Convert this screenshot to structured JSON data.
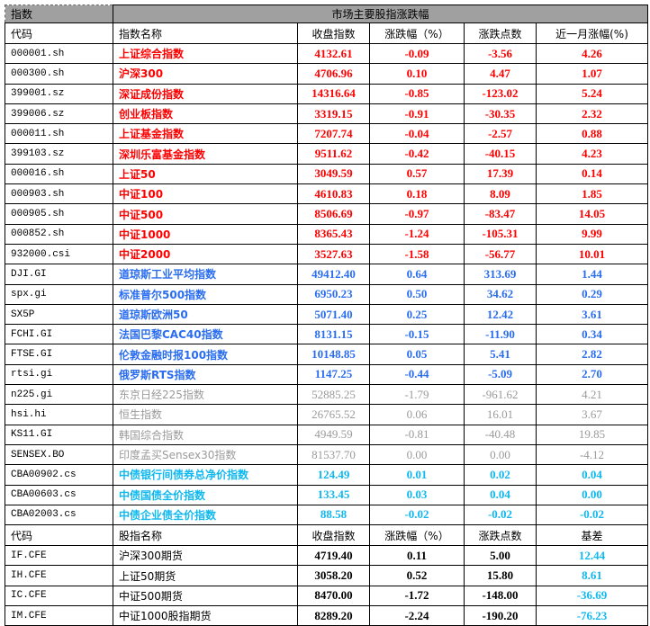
{
  "title_left": "指数",
  "title": "市场主要股指涨跌幅",
  "columns": [
    "代码",
    "指数名称",
    "收盘指数",
    "涨跌幅（%）",
    "涨跌点数",
    "近一月涨幅(%)"
  ],
  "colors": {
    "red": "#ff0000",
    "blue": "#2a6df0",
    "gray": "#9a9a9a",
    "cyan": "#10b8f0",
    "header_bg": "#a0a0a0"
  },
  "indices": [
    {
      "code": "000001.sh",
      "name": "上证综合指数",
      "close": "4132.61",
      "pct": "-0.09",
      "pts": "-3.56",
      "month": "4.26",
      "color": "red"
    },
    {
      "code": "000300.sh",
      "name": "沪深300",
      "close": "4706.96",
      "pct": "0.10",
      "pts": "4.47",
      "month": "1.07",
      "color": "red"
    },
    {
      "code": "399001.sz",
      "name": "深证成份指数",
      "close": "14316.64",
      "pct": "-0.85",
      "pts": "-123.02",
      "month": "5.24",
      "color": "red"
    },
    {
      "code": "399006.sz",
      "name": "创业板指数",
      "close": "3319.15",
      "pct": "-0.91",
      "pts": "-30.35",
      "month": "2.32",
      "color": "red"
    },
    {
      "code": "000011.sh",
      "name": "上证基金指数",
      "close": "7207.74",
      "pct": "-0.04",
      "pts": "-2.57",
      "month": "0.88",
      "color": "red"
    },
    {
      "code": "399103.sz",
      "name": "深圳乐富基金指数",
      "close": "9511.62",
      "pct": "-0.42",
      "pts": "-40.15",
      "month": "4.23",
      "color": "red"
    },
    {
      "code": "000016.sh",
      "name": "上证50",
      "close": "3049.59",
      "pct": "0.57",
      "pts": "17.39",
      "month": "0.14",
      "color": "red"
    },
    {
      "code": "000903.sh",
      "name": "中证100",
      "close": "4610.83",
      "pct": "0.18",
      "pts": "8.09",
      "month": "1.85",
      "color": "red"
    },
    {
      "code": "000905.sh",
      "name": "中证500",
      "close": "8506.69",
      "pct": "-0.97",
      "pts": "-83.47",
      "month": "14.05",
      "color": "red"
    },
    {
      "code": "000852.sh",
      "name": "中证1000",
      "close": "8365.43",
      "pct": "-1.24",
      "pts": "-105.31",
      "month": "9.99",
      "color": "red"
    },
    {
      "code": "932000.csi",
      "name": "中证2000",
      "close": "3527.63",
      "pct": "-1.58",
      "pts": "-56.77",
      "month": "10.01",
      "color": "red"
    },
    {
      "code": "DJI.GI",
      "name": "道琼斯工业平均指数",
      "close": "49412.40",
      "pct": "0.64",
      "pts": "313.69",
      "month": "1.44",
      "color": "blue"
    },
    {
      "code": "spx.gi",
      "name": "标准普尔500指数",
      "close": "6950.23",
      "pct": "0.50",
      "pts": "34.62",
      "month": "0.29",
      "color": "blue"
    },
    {
      "code": "SX5P",
      "name": "道琼斯欧洲50",
      "close": "5071.40",
      "pct": "0.25",
      "pts": "12.42",
      "month": "3.61",
      "color": "blue"
    },
    {
      "code": "FCHI.GI",
      "name": "法国巴黎CAC40指数",
      "close": "8131.15",
      "pct": "-0.15",
      "pts": "-11.90",
      "month": "0.34",
      "color": "blue"
    },
    {
      "code": "FTSE.GI",
      "name": "伦敦金融时报100指数",
      "close": "10148.85",
      "pct": "0.05",
      "pts": "5.41",
      "month": "2.82",
      "color": "blue"
    },
    {
      "code": "rtsi.gi",
      "name": "俄罗斯RTS指数",
      "close": "1147.25",
      "pct": "-0.44",
      "pts": "-5.09",
      "month": "2.70",
      "color": "blue"
    },
    {
      "code": "n225.gi",
      "name": "东京日经225指数",
      "close": "52885.25",
      "pct": "-1.79",
      "pts": "-961.62",
      "month": "4.21",
      "color": "gray"
    },
    {
      "code": "hsi.hi",
      "name": "恒生指数",
      "close": "26765.52",
      "pct": "0.06",
      "pts": "16.01",
      "month": "3.67",
      "color": "gray"
    },
    {
      "code": "KS11.GI",
      "name": "韩国综合指数",
      "close": "4949.59",
      "pct": "-0.81",
      "pts": "-40.48",
      "month": "19.85",
      "color": "gray"
    },
    {
      "code": "SENSEX.BO",
      "name": "印度孟买Sensex30指数",
      "close": "81537.70",
      "pct": "0.00",
      "pts": "0.00",
      "month": "-4.12",
      "color": "gray"
    },
    {
      "code": "CBA00902.cs",
      "name": "中债银行间债券总净价指数",
      "close": "124.49",
      "pct": "0.01",
      "pts": "0.02",
      "month": "0.04",
      "color": "cyan"
    },
    {
      "code": "CBA00603.cs",
      "name": "中债国债全价指数",
      "close": "133.45",
      "pct": "0.03",
      "pts": "0.04",
      "month": "0.00",
      "color": "cyan"
    },
    {
      "code": "CBA02003.cs",
      "name": "中债企业债全价指数",
      "close": "88.58",
      "pct": "-0.02",
      "pts": "-0.02",
      "month": "-0.02",
      "color": "cyan"
    }
  ],
  "futures_columns": [
    "代码",
    "股指名称",
    "收盘指数",
    "涨跌幅（%）",
    "涨跌点数",
    "基差"
  ],
  "futures": [
    {
      "code": "IF.CFE",
      "name": "沪深300期货",
      "close": "4719.40",
      "pct": "0.11",
      "pts": "5.00",
      "basis": "12.44"
    },
    {
      "code": "IH.CFE",
      "name": "上证50期货",
      "close": "3058.20",
      "pct": "0.52",
      "pts": "15.80",
      "basis": "8.61"
    },
    {
      "code": "IC.CFE",
      "name": "中证500期货",
      "close": "8470.00",
      "pct": "-1.72",
      "pts": "-148.00",
      "basis": "-36.69"
    },
    {
      "code": "IM.CFE",
      "name": "中证1000股指期货",
      "close": "8289.20",
      "pct": "-2.24",
      "pts": "-190.20",
      "basis": "-76.23"
    }
  ]
}
